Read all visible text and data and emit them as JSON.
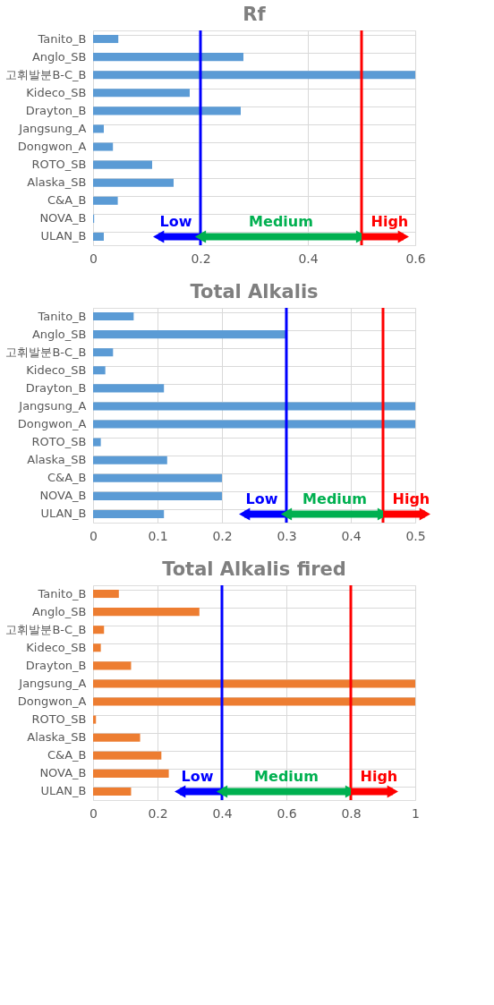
{
  "chart_data": [
    {
      "type": "bar",
      "orientation": "horizontal",
      "title": "Rf",
      "categories": [
        "Tanito_B",
        "Anglo_SB",
        "고휘발분B-C_B",
        "Kideco_SB",
        "Drayton_B",
        "Jangsung_A",
        "Dongwon_A",
        "ROTO_SB",
        "Alaska_SB",
        "C&A_B",
        "NOVA_B",
        "ULAN_B"
      ],
      "series": [
        {
          "color": "#5b9bd5",
          "values": [
            0.047,
            0.28,
            0.6,
            0.18,
            0.275,
            0.02,
            0.037,
            0.11,
            0.15,
            0.046,
            0.002,
            0.02
          ]
        }
      ],
      "xlim": [
        0,
        0.6
      ],
      "xticks": [
        0,
        0.2,
        0.4,
        0.6
      ],
      "grid": true,
      "ref_lines": [
        {
          "axis": "x",
          "value": 0.2,
          "color": "#0000ff"
        },
        {
          "axis": "x",
          "value": 0.5,
          "color": "#ff0000"
        }
      ],
      "annotations": [
        "Low",
        "Medium",
        "High"
      ]
    },
    {
      "type": "bar",
      "orientation": "horizontal",
      "title": "Total Alkalis",
      "categories": [
        "Tanito_B",
        "Anglo_SB",
        "고휘발분B-C_B",
        "Kideco_SB",
        "Drayton_B",
        "Jangsung_A",
        "Dongwon_A",
        "ROTO_SB",
        "Alaska_SB",
        "C&A_B",
        "NOVA_B",
        "ULAN_B"
      ],
      "series": [
        {
          "color": "#5b9bd5",
          "values": [
            0.063,
            0.3,
            0.031,
            0.019,
            0.11,
            0.5,
            0.5,
            0.012,
            0.115,
            0.2,
            0.2,
            0.11
          ]
        }
      ],
      "xlim": [
        0,
        0.5
      ],
      "xticks": [
        0,
        0.1,
        0.2,
        0.3,
        0.4,
        0.5
      ],
      "grid": true,
      "ref_lines": [
        {
          "axis": "x",
          "value": 0.3,
          "color": "#0000ff"
        },
        {
          "axis": "x",
          "value": 0.45,
          "color": "#ff0000"
        }
      ],
      "annotations": [
        "Low",
        "Medium",
        "High"
      ]
    },
    {
      "type": "bar",
      "orientation": "horizontal",
      "title": "Total Alkalis fired",
      "categories": [
        "Tanito_B",
        "Anglo_SB",
        "고휘발분B-C_B",
        "Kideco_SB",
        "Drayton_B",
        "Jangsung_A",
        "Dongwon_A",
        "ROTO_SB",
        "Alaska_SB",
        "C&A_B",
        "NOVA_B",
        "ULAN_B"
      ],
      "series": [
        {
          "color": "#ed7d31",
          "values": [
            0.08,
            0.33,
            0.034,
            0.024,
            0.118,
            1,
            1,
            0.009,
            0.146,
            0.212,
            0.235,
            0.118
          ]
        }
      ],
      "xlim": [
        0,
        1
      ],
      "xticks": [
        0,
        0.2,
        0.4,
        0.6,
        0.8,
        1
      ],
      "grid": true,
      "ref_lines": [
        {
          "axis": "x",
          "value": 0.4,
          "color": "#0000ff"
        },
        {
          "axis": "x",
          "value": 0.8,
          "color": "#ff0000"
        }
      ],
      "annotations": [
        "Low",
        "Medium",
        "High"
      ]
    }
  ]
}
